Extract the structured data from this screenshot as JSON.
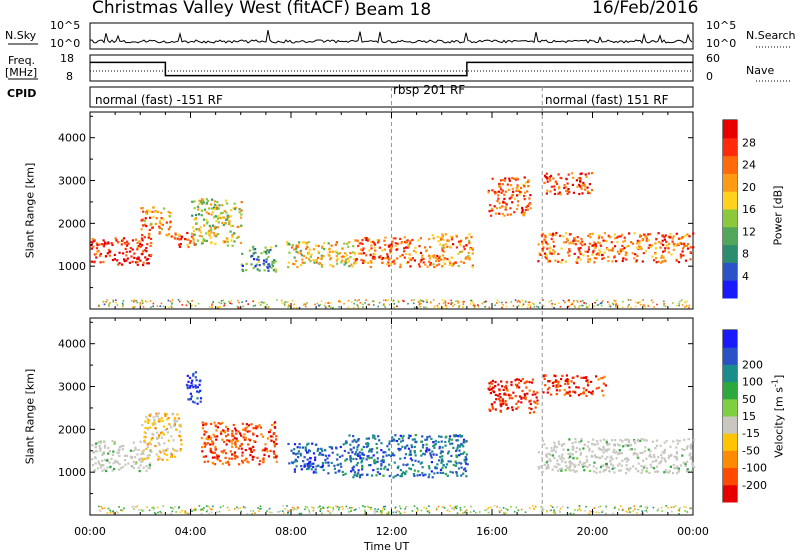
{
  "header": {
    "station": "Christmas Valley West (fitACF)",
    "beam": "Beam 18",
    "date": "16/Feb/2016"
  },
  "top_panels": {
    "nsky_label": "N.Sky",
    "nsky_ticks": [
      "10^5",
      "10^0"
    ],
    "nsearch_label": "N.Search",
    "nsearch_ticks": [
      "10^5",
      "10^0"
    ],
    "freq_label_1": "Freq.",
    "freq_label_2": "[MHz]",
    "freq_ticks": [
      "18",
      "8"
    ],
    "nave_label": "Nave",
    "nave_ticks": [
      "60",
      "0"
    ],
    "cpid_label": "CPID",
    "cpid_segments": [
      {
        "label": "normal (fast) -151 RF",
        "start_h": 0,
        "end_h": 12
      },
      {
        "label": "rbsp 201 RF",
        "start_h": 12,
        "end_h": 18
      },
      {
        "label": "normal (fast) 151 RF",
        "start_h": 18,
        "end_h": 24
      }
    ]
  },
  "colors": {
    "power_scale": [
      "#1a1aff",
      "#2c52c8",
      "#2c8c70",
      "#52a65a",
      "#8cc83c",
      "#ffd21e",
      "#ff9a14",
      "#ff6a0a",
      "#ff2a0a",
      "#e60000"
    ],
    "velocity_scale": [
      "#e60000",
      "#ff4a00",
      "#ff8a00",
      "#ffc400",
      "#c8c8c0",
      "#7ed040",
      "#2ca83c",
      "#1a8c8c",
      "#2a52c8",
      "#1a1aff"
    ],
    "ground_scatter": "#c8c8c0"
  },
  "chart_data": [
    {
      "type": "heatmap",
      "title": "",
      "xlabel": "Time UT",
      "ylabel": "Slant Range [km]",
      "x_range_hours": [
        0,
        24
      ],
      "x_ticks": [
        "00:00",
        "04:00",
        "08:00",
        "12:00",
        "16:00",
        "20:00",
        "00:00"
      ],
      "ylim": [
        0,
        4600
      ],
      "y_ticks": [
        1000,
        2000,
        3000,
        4000
      ],
      "colorbar_label": "Power [dB]",
      "colorbar_ticks": [
        4,
        8,
        12,
        16,
        20,
        24,
        28
      ],
      "colorbar_range": [
        0,
        32
      ],
      "regions": [
        {
          "t0": 0.0,
          "t1": 2.4,
          "r0": 1050,
          "r1": 1700,
          "level": 0.9
        },
        {
          "t0": 2.0,
          "t1": 3.2,
          "r0": 1700,
          "r1": 2400,
          "level": 0.7
        },
        {
          "t0": 3.2,
          "t1": 4.2,
          "r0": 1450,
          "r1": 1800,
          "level": 0.8
        },
        {
          "t0": 4.0,
          "t1": 6.0,
          "r0": 1500,
          "r1": 2600,
          "level": 0.5
        },
        {
          "t0": 6.0,
          "t1": 7.4,
          "r0": 900,
          "r1": 1500,
          "level": 0.3
        },
        {
          "t0": 7.8,
          "t1": 10.5,
          "r0": 1000,
          "r1": 1600,
          "level": 0.55
        },
        {
          "t0": 10.5,
          "t1": 13.5,
          "r0": 1000,
          "r1": 1700,
          "level": 0.75
        },
        {
          "t0": 13.5,
          "t1": 15.2,
          "r0": 1000,
          "r1": 1800,
          "level": 0.7
        },
        {
          "t0": 15.8,
          "t1": 17.5,
          "r0": 2200,
          "r1": 3100,
          "level": 0.8
        },
        {
          "t0": 18.0,
          "t1": 20.0,
          "r0": 2700,
          "r1": 3200,
          "level": 0.85
        },
        {
          "t0": 17.8,
          "t1": 24.0,
          "r0": 1100,
          "r1": 1800,
          "level": 0.75
        }
      ]
    },
    {
      "type": "heatmap",
      "title": "",
      "xlabel": "Time UT",
      "ylabel": "Slant Range [km]",
      "x_range_hours": [
        0,
        24
      ],
      "x_ticks": [
        "00:00",
        "04:00",
        "08:00",
        "12:00",
        "16:00",
        "20:00",
        "00:00"
      ],
      "ylim": [
        0,
        4600
      ],
      "y_ticks": [
        1000,
        2000,
        3000,
        4000
      ],
      "colorbar_label": "Velocity [m s^-1]",
      "colorbar_ticks": [
        -200,
        -100,
        -50,
        -15,
        15,
        50,
        100,
        200
      ],
      "colorbar_range": [
        -250,
        250
      ],
      "regions": [
        {
          "t0": 0.0,
          "t1": 2.4,
          "r0": 1050,
          "r1": 1750,
          "vel": 0
        },
        {
          "t0": 2.0,
          "t1": 3.6,
          "r0": 1300,
          "r1": 2400,
          "vel": -60
        },
        {
          "t0": 3.8,
          "t1": 4.4,
          "r0": 2600,
          "r1": 3400,
          "vel": 200
        },
        {
          "t0": 4.4,
          "t1": 7.4,
          "r0": 1200,
          "r1": 2200,
          "vel": -180
        },
        {
          "t0": 7.8,
          "t1": 10.0,
          "r0": 1000,
          "r1": 1700,
          "vel": 170
        },
        {
          "t0": 10.0,
          "t1": 15.0,
          "r0": 900,
          "r1": 1900,
          "vel": 150
        },
        {
          "t0": 15.8,
          "t1": 17.8,
          "r0": 2400,
          "r1": 3200,
          "vel": -200
        },
        {
          "t0": 18.0,
          "t1": 20.5,
          "r0": 2800,
          "r1": 3300,
          "vel": -190
        },
        {
          "t0": 17.8,
          "t1": 24.0,
          "r0": 1000,
          "r1": 1800,
          "vel": 0
        }
      ]
    }
  ],
  "labels": {
    "time_axis": "Time UT",
    "slant_range": "Slant Range [km]",
    "power": "Power [dB]",
    "velocity_base": "Velocity [m s",
    "velocity_exp": "-1",
    "velocity_tail": "]"
  }
}
